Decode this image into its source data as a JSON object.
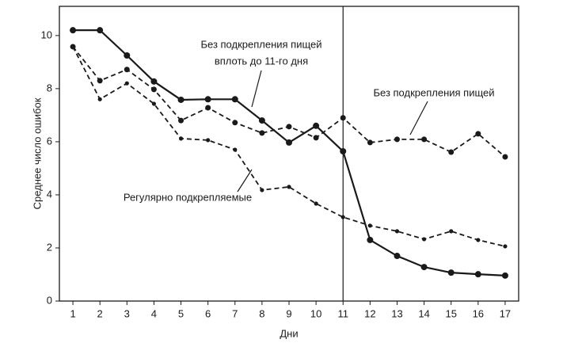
{
  "chart_data": {
    "type": "line",
    "x_label": "Дни",
    "y_label": "Среднее число ошибок",
    "x": [
      1,
      2,
      3,
      4,
      5,
      6,
      7,
      8,
      9,
      10,
      11,
      12,
      13,
      14,
      15,
      16,
      17
    ],
    "xlim": [
      0.5,
      17.5
    ],
    "xticks": [
      1,
      2,
      3,
      4,
      5,
      6,
      7,
      8,
      9,
      10,
      11,
      12,
      13,
      14,
      15,
      16,
      17
    ],
    "ylim": [
      0,
      11.1
    ],
    "yticks": [
      0,
      2,
      4,
      6,
      8,
      10
    ],
    "grid": false,
    "vline": 11,
    "series": [
      {
        "name": "Без подкрепления пищей вплоть до 11-го дня",
        "color": "#1a1a1a",
        "line_style": "solid",
        "values": [
          10.2,
          10.2,
          9.25,
          8.27,
          7.58,
          7.6,
          7.6,
          6.8,
          5.97,
          6.6,
          5.64,
          2.3,
          1.7,
          1.28,
          1.07,
          1.01,
          0.96
        ]
      },
      {
        "name": "Без подкрепления пищей",
        "color": "#1a1a1a",
        "line_style": "dashed",
        "values": [
          9.58,
          8.3,
          8.72,
          7.97,
          6.8,
          7.28,
          6.72,
          6.33,
          6.57,
          6.15,
          6.9,
          5.97,
          6.09,
          6.09,
          5.61,
          6.3,
          5.43
        ]
      },
      {
        "name": "Регулярно подкрепляемые",
        "color": "#1a1a1a",
        "line_style": "dashed",
        "values": [
          9.58,
          7.6,
          8.2,
          7.43,
          6.12,
          6.06,
          5.7,
          4.18,
          4.3,
          3.67,
          3.16,
          2.84,
          2.63,
          2.33,
          2.63,
          2.3,
          2.06
        ]
      }
    ],
    "annotations": [
      {
        "lines": [
          "Без подкрепления пищей",
          "вплоть до 11-го дня"
        ]
      },
      {
        "lines": [
          "Без подкрепления пищей"
        ]
      },
      {
        "lines": [
          "Регулярно подкрепляемые"
        ]
      }
    ]
  }
}
